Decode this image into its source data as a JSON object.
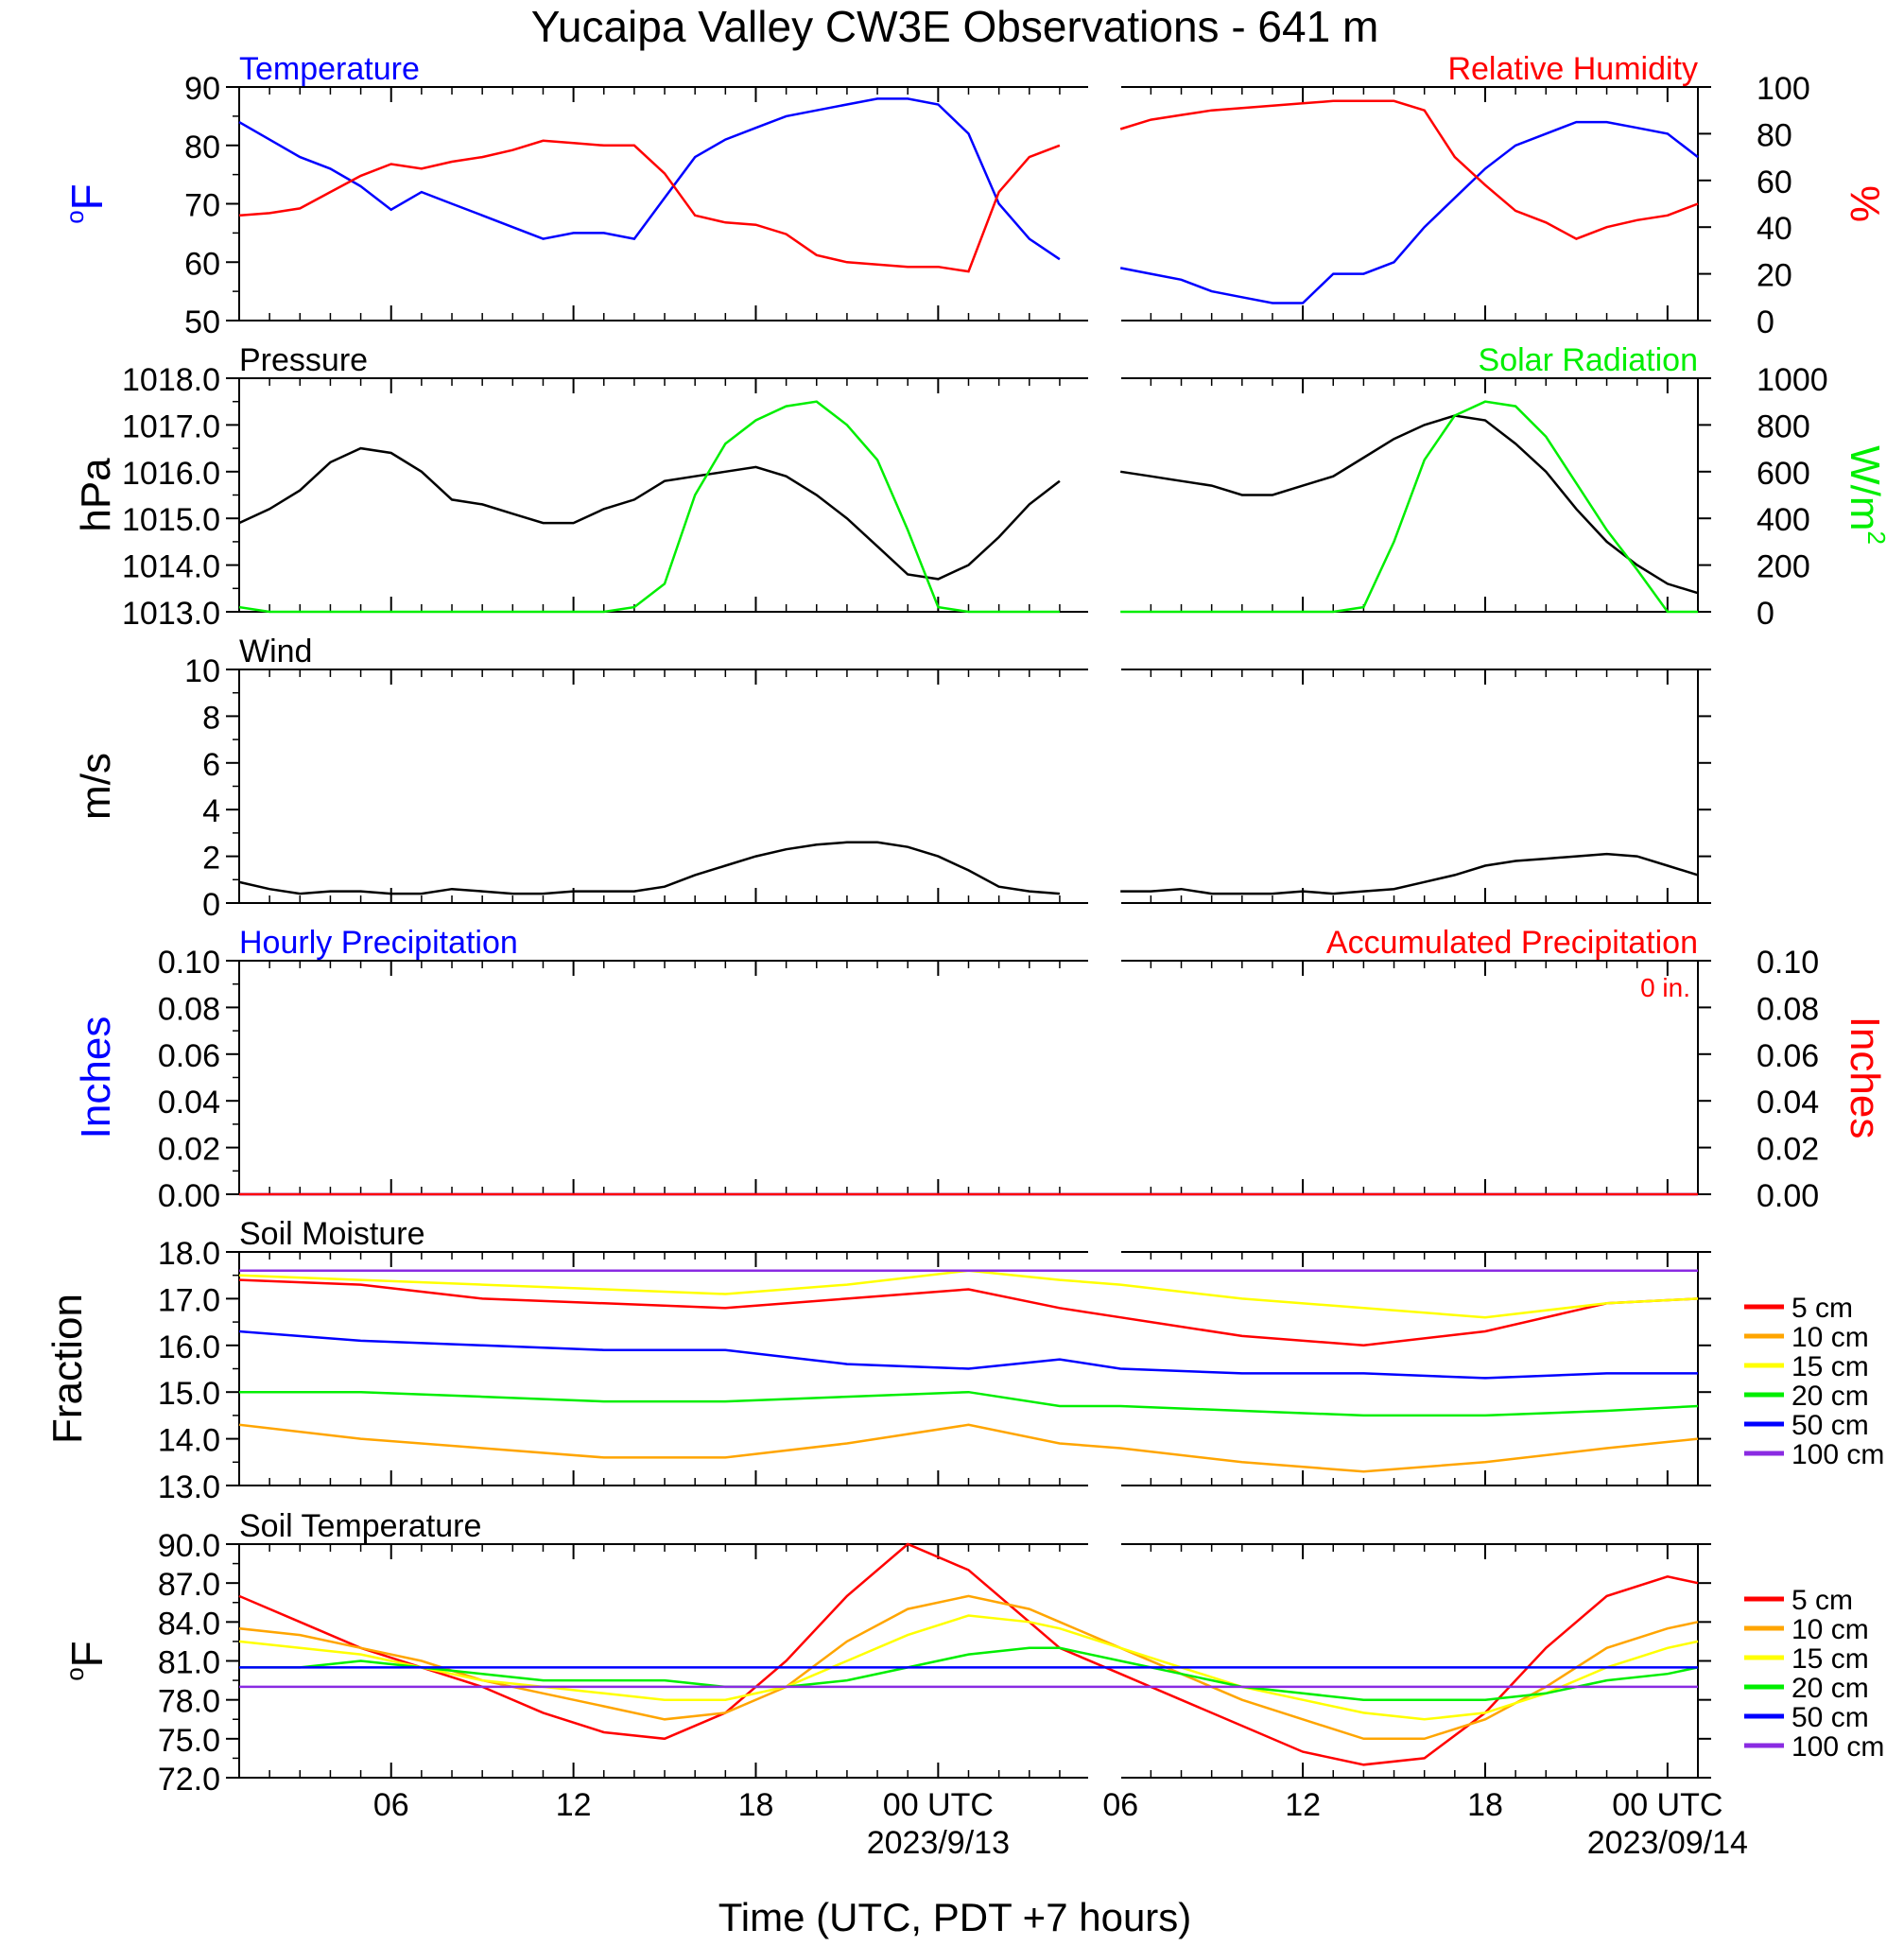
{
  "figure": {
    "title": "Yucaipa Valley CW3E Observations - 641 m",
    "xlabel": "Time (UTC, PDT +7 hours)",
    "x_tick_labels": [
      "06",
      "12",
      "18",
      "00 UTC",
      "06",
      "12",
      "18",
      "00 UTC"
    ],
    "date_labels": [
      "2023/9/13",
      "2023/09/14"
    ]
  },
  "chart_data": [
    {
      "type": "line",
      "panel": "temperature_humidity",
      "left_title": "Temperature",
      "right_title": "Relative Humidity",
      "ylabel_left": "oF",
      "ylabel_right": "%",
      "ylim_left": [
        50,
        90
      ],
      "ylim_right": [
        0,
        100
      ],
      "y_ticks_left": [
        "50",
        "60",
        "70",
        "80",
        "90"
      ],
      "y_ticks_right": [
        "0",
        "20",
        "40",
        "60",
        "80",
        "100"
      ],
      "x_hours": [
        1,
        2,
        3,
        4,
        5,
        6,
        7,
        8,
        9,
        10,
        11,
        12,
        13,
        14,
        15,
        16,
        17,
        18,
        19,
        20,
        21,
        22,
        23,
        24,
        25,
        26,
        27,
        28,
        29,
        30,
        31,
        32,
        33,
        34,
        35,
        36,
        37,
        38,
        39,
        40,
        41,
        42,
        43,
        44,
        45,
        46,
        47,
        48,
        49
      ],
      "series": [
        {
          "name": "Temperature",
          "color": "#0000ff",
          "axis": "left",
          "values": [
            84,
            81,
            78,
            76,
            73,
            69,
            72,
            70,
            68,
            66,
            64,
            65,
            65,
            64,
            71,
            78,
            81,
            83,
            85,
            86,
            87,
            88,
            88,
            87,
            82,
            70,
            64,
            60.5,
            null,
            59,
            58,
            57,
            55,
            54,
            53,
            53,
            58,
            58,
            60,
            66,
            71,
            76,
            80,
            82,
            84,
            84,
            83,
            82,
            78
          ]
        },
        {
          "name": "Relative Humidity",
          "color": "#ff0000",
          "axis": "right",
          "values": [
            45,
            46,
            48,
            55,
            62,
            67,
            65,
            68,
            70,
            73,
            77,
            76,
            75,
            75,
            63,
            45,
            42,
            41,
            37,
            28,
            25,
            24,
            23,
            23,
            21,
            55,
            70,
            75,
            null,
            82,
            86,
            88,
            90,
            91,
            92,
            93,
            94,
            94,
            94,
            90,
            70,
            58,
            47,
            42,
            35,
            40,
            43,
            45,
            50
          ]
        }
      ]
    },
    {
      "type": "line",
      "panel": "pressure_solar",
      "left_title": "Pressure",
      "right_title": "Solar Radiation",
      "ylabel_left": "hPa",
      "ylabel_right": "W/m2",
      "ylim_left": [
        1013,
        1018
      ],
      "ylim_right": [
        0,
        1000
      ],
      "y_ticks_left": [
        "1013.0",
        "1014.0",
        "1015.0",
        "1016.0",
        "1017.0",
        "1018.0"
      ],
      "y_ticks_right": [
        "0",
        "200",
        "400",
        "600",
        "800",
        "1000"
      ],
      "x_hours": [
        1,
        2,
        3,
        4,
        5,
        6,
        7,
        8,
        9,
        10,
        11,
        12,
        13,
        14,
        15,
        16,
        17,
        18,
        19,
        20,
        21,
        22,
        23,
        24,
        25,
        26,
        27,
        28,
        29,
        30,
        31,
        32,
        33,
        34,
        35,
        36,
        37,
        38,
        39,
        40,
        41,
        42,
        43,
        44,
        45,
        46,
        47,
        48,
        49
      ],
      "series": [
        {
          "name": "Pressure",
          "color": "#000000",
          "axis": "left",
          "values": [
            1014.9,
            1015.2,
            1015.6,
            1016.2,
            1016.5,
            1016.4,
            1016.0,
            1015.4,
            1015.3,
            1015.1,
            1014.9,
            1014.9,
            1015.2,
            1015.4,
            1015.8,
            1015.9,
            1016.0,
            1016.1,
            1015.9,
            1015.5,
            1015.0,
            1014.4,
            1013.8,
            1013.7,
            1014.0,
            1014.6,
            1015.3,
            1015.8,
            null,
            1016.0,
            1015.9,
            1015.8,
            1015.7,
            1015.5,
            1015.5,
            1015.7,
            1015.9,
            1016.3,
            1016.7,
            1017.0,
            1017.2,
            1017.1,
            1016.6,
            1016.0,
            1015.2,
            1014.5,
            1014.0,
            1013.6,
            1013.4
          ]
        },
        {
          "name": "Solar Radiation",
          "color": "#00ee00",
          "axis": "right",
          "values": [
            20,
            0,
            0,
            0,
            0,
            0,
            0,
            0,
            0,
            0,
            0,
            0,
            0,
            20,
            120,
            500,
            720,
            820,
            880,
            900,
            800,
            650,
            350,
            20,
            0,
            0,
            0,
            0,
            null,
            0,
            0,
            0,
            0,
            0,
            0,
            0,
            0,
            20,
            300,
            650,
            840,
            900,
            880,
            750,
            550,
            350,
            180,
            0,
            0
          ]
        }
      ]
    },
    {
      "type": "line",
      "panel": "wind",
      "left_title": "Wind",
      "ylabel_left": "m/s",
      "ylim_left": [
        0,
        10
      ],
      "y_ticks_left": [
        "0",
        "2",
        "4",
        "6",
        "8",
        "10"
      ],
      "x_hours": [
        1,
        2,
        3,
        4,
        5,
        6,
        7,
        8,
        9,
        10,
        11,
        12,
        13,
        14,
        15,
        16,
        17,
        18,
        19,
        20,
        21,
        22,
        23,
        24,
        25,
        26,
        27,
        28,
        29,
        30,
        31,
        32,
        33,
        34,
        35,
        36,
        37,
        38,
        39,
        40,
        41,
        42,
        43,
        44,
        45,
        46,
        47,
        48,
        49
      ],
      "series": [
        {
          "name": "Wind speed",
          "color": "#000000",
          "values": [
            0.9,
            0.6,
            0.4,
            0.5,
            0.5,
            0.4,
            0.4,
            0.6,
            0.5,
            0.4,
            0.4,
            0.5,
            0.5,
            0.5,
            0.7,
            1.2,
            1.6,
            2.0,
            2.3,
            2.5,
            2.6,
            2.6,
            2.4,
            2.0,
            1.4,
            0.7,
            0.5,
            0.4,
            null,
            0.5,
            0.5,
            0.6,
            0.4,
            0.4,
            0.4,
            0.5,
            0.4,
            0.5,
            0.6,
            0.9,
            1.2,
            1.6,
            1.8,
            1.9,
            2.0,
            2.1,
            2.0,
            1.6,
            1.2
          ]
        }
      ]
    },
    {
      "type": "line",
      "panel": "precipitation",
      "left_title": "Hourly Precipitation",
      "right_title": "Accumulated Precipitation",
      "annotation": "0 in.",
      "ylabel_left": "Inches",
      "ylabel_right": "Inches",
      "ylim_left": [
        0,
        0.1
      ],
      "ylim_right": [
        0,
        0.1
      ],
      "y_ticks_left": [
        "0.00",
        "0.02",
        "0.04",
        "0.06",
        "0.08",
        "0.10"
      ],
      "y_ticks_right": [
        "0.00",
        "0.02",
        "0.04",
        "0.06",
        "0.08",
        "0.10"
      ],
      "x_hours": [
        1,
        49
      ],
      "series": [
        {
          "name": "Hourly Precipitation",
          "color": "#0000ff",
          "values": [
            0,
            0
          ]
        },
        {
          "name": "Accumulated Precipitation",
          "color": "#ff0000",
          "values": [
            0,
            0
          ]
        }
      ]
    },
    {
      "type": "line",
      "panel": "soil_moisture",
      "left_title": "Soil Moisture",
      "ylabel_left": "Fraction",
      "ylim_left": [
        13,
        18
      ],
      "y_ticks_left": [
        "13.0",
        "14.0",
        "15.0",
        "16.0",
        "17.0",
        "18.0"
      ],
      "x_hours": [
        1,
        5,
        9,
        13,
        17,
        21,
        25,
        28,
        30,
        34,
        38,
        42,
        46,
        49
      ],
      "series": [
        {
          "name": "5 cm",
          "color": "#ff0000",
          "values": [
            17.4,
            17.3,
            17.0,
            16.9,
            16.8,
            17.0,
            17.2,
            16.8,
            16.6,
            16.2,
            16.0,
            16.3,
            16.9,
            17.0
          ]
        },
        {
          "name": "10 cm",
          "color": "#ffa500",
          "values": [
            14.3,
            14.0,
            13.8,
            13.6,
            13.6,
            13.9,
            14.3,
            13.9,
            13.8,
            13.5,
            13.3,
            13.5,
            13.8,
            14.0
          ]
        },
        {
          "name": "15 cm",
          "color": "#ffff00",
          "values": [
            17.5,
            17.4,
            17.3,
            17.2,
            17.1,
            17.3,
            17.6,
            17.4,
            17.3,
            17.0,
            16.8,
            16.6,
            16.9,
            17.0
          ]
        },
        {
          "name": "20 cm",
          "color": "#00ee00",
          "values": [
            15.0,
            15.0,
            14.9,
            14.8,
            14.8,
            14.9,
            15.0,
            14.7,
            14.7,
            14.6,
            14.5,
            14.5,
            14.6,
            14.7
          ]
        },
        {
          "name": "50 cm",
          "color": "#0000ff",
          "values": [
            16.3,
            16.1,
            16.0,
            15.9,
            15.9,
            15.6,
            15.5,
            15.7,
            15.5,
            15.4,
            15.4,
            15.3,
            15.4,
            15.4
          ]
        },
        {
          "name": "100 cm",
          "color": "#8a2be2",
          "values": [
            17.6,
            17.6,
            17.6,
            17.6,
            17.6,
            17.6,
            17.6,
            17.6,
            17.6,
            17.6,
            17.6,
            17.6,
            17.6,
            17.6
          ]
        }
      ]
    },
    {
      "type": "line",
      "panel": "soil_temperature",
      "left_title": "Soil Temperature",
      "ylabel_left": "oF",
      "ylim_left": [
        72,
        90
      ],
      "y_ticks_left": [
        "72.0",
        "75.0",
        "78.0",
        "81.0",
        "84.0",
        "87.0",
        "90.0"
      ],
      "x_hours": [
        1,
        3,
        5,
        7,
        9,
        11,
        13,
        15,
        17,
        19,
        21,
        23,
        25,
        27,
        28,
        30,
        32,
        34,
        36,
        38,
        40,
        42,
        44,
        46,
        48,
        49
      ],
      "series": [
        {
          "name": "5 cm",
          "color": "#ff0000",
          "values": [
            86,
            84,
            82,
            80.5,
            79,
            77,
            75.5,
            75,
            77,
            81,
            86,
            90,
            88,
            84,
            82,
            80,
            78,
            76,
            74,
            73,
            73.5,
            77,
            82,
            86,
            87.5,
            87
          ]
        },
        {
          "name": "10 cm",
          "color": "#ffa500",
          "values": [
            83.5,
            83,
            82,
            81,
            79.5,
            78.5,
            77.5,
            76.5,
            77,
            79,
            82.5,
            85,
            86,
            85,
            84,
            82,
            80,
            78,
            76.5,
            75,
            75,
            76.5,
            79,
            82,
            83.5,
            84
          ]
        },
        {
          "name": "15 cm",
          "color": "#ffff00",
          "values": [
            82.5,
            82,
            81.5,
            80.5,
            79.5,
            79,
            78.5,
            78,
            78,
            79,
            81,
            83,
            84.5,
            84,
            83.5,
            82,
            80.5,
            79,
            78,
            77,
            76.5,
            77,
            78.5,
            80.5,
            82,
            82.5
          ]
        },
        {
          "name": "20 cm",
          "color": "#00ee00",
          "values": [
            80.5,
            80.5,
            81,
            80.5,
            80,
            79.5,
            79.5,
            79.5,
            79,
            79,
            79.5,
            80.5,
            81.5,
            82,
            82,
            81,
            80,
            79,
            78.5,
            78,
            78,
            78,
            78.5,
            79.5,
            80,
            80.5
          ]
        },
        {
          "name": "50 cm",
          "color": "#0000ff",
          "values": [
            80.5,
            80.5,
            80.5,
            80.5,
            80.5,
            80.5,
            80.5,
            80.5,
            80.5,
            80.5,
            80.5,
            80.5,
            80.5,
            80.5,
            80.5,
            80.5,
            80.5,
            80.5,
            80.5,
            80.5,
            80.5,
            80.5,
            80.5,
            80.5,
            80.5,
            80.5
          ]
        },
        {
          "name": "100 cm",
          "color": "#8a2be2",
          "values": [
            79,
            79,
            79,
            79,
            79,
            79,
            79,
            79,
            79,
            79,
            79,
            79,
            79,
            79,
            79,
            79,
            79,
            79,
            79,
            79,
            79,
            79,
            79,
            79,
            79,
            79
          ]
        }
      ]
    }
  ]
}
